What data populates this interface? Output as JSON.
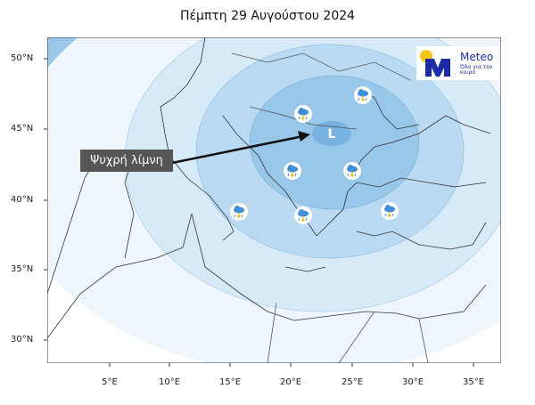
{
  "title": "Πέμπτη 29 Αυγούστου 2024",
  "annotation": "Ψυχρή λίμνη",
  "low_marker": "L",
  "logo": {
    "name": "Meteo",
    "tagline": "Όλα για τον καιρό"
  },
  "lat_labels": [
    "50°N",
    "45°N",
    "40°N",
    "35°N",
    "30°N"
  ],
  "lon_labels": [
    "5°E",
    "10°E",
    "15°E",
    "20°E",
    "25°E",
    "30°E",
    "35°E"
  ],
  "icons": [
    "thunderstorm-rain-icon"
  ],
  "colors": {
    "shade1": "#eef6fc",
    "shade2": "#d6eaf8",
    "shade3": "#b9daf2",
    "shade4": "#98c7ea",
    "shade5": "#78b2e0",
    "brand": "#1d2ba6",
    "sun": "#f5c518"
  }
}
